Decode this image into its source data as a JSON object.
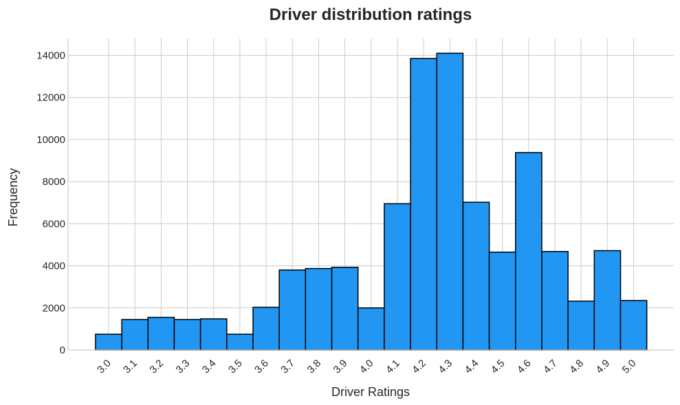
{
  "chart_data": {
    "type": "bar",
    "title": "Driver distribution ratings",
    "xlabel": "Driver Ratings",
    "ylabel": "Frequency",
    "categories": [
      "3.0",
      "3.1",
      "3.2",
      "3.3",
      "3.4",
      "3.5",
      "3.6",
      "3.7",
      "3.8",
      "3.9",
      "4.0",
      "4.1",
      "4.2",
      "4.3",
      "4.4",
      "4.5",
      "4.6",
      "4.7",
      "4.8",
      "4.9",
      "5.0"
    ],
    "values": [
      750,
      1450,
      1550,
      1450,
      1480,
      750,
      2030,
      3800,
      3870,
      3930,
      2000,
      6950,
      13850,
      14100,
      7020,
      4650,
      9380,
      4680,
      2320,
      4720,
      2350
    ],
    "ylim": [
      0,
      14800
    ],
    "yticks": [
      0,
      2000,
      4000,
      6000,
      8000,
      10000,
      12000,
      14000
    ],
    "grid": true,
    "colors": {
      "bar": "#2196f3",
      "edge": "#000000",
      "grid": "#cccccc",
      "text": "#262626"
    }
  }
}
